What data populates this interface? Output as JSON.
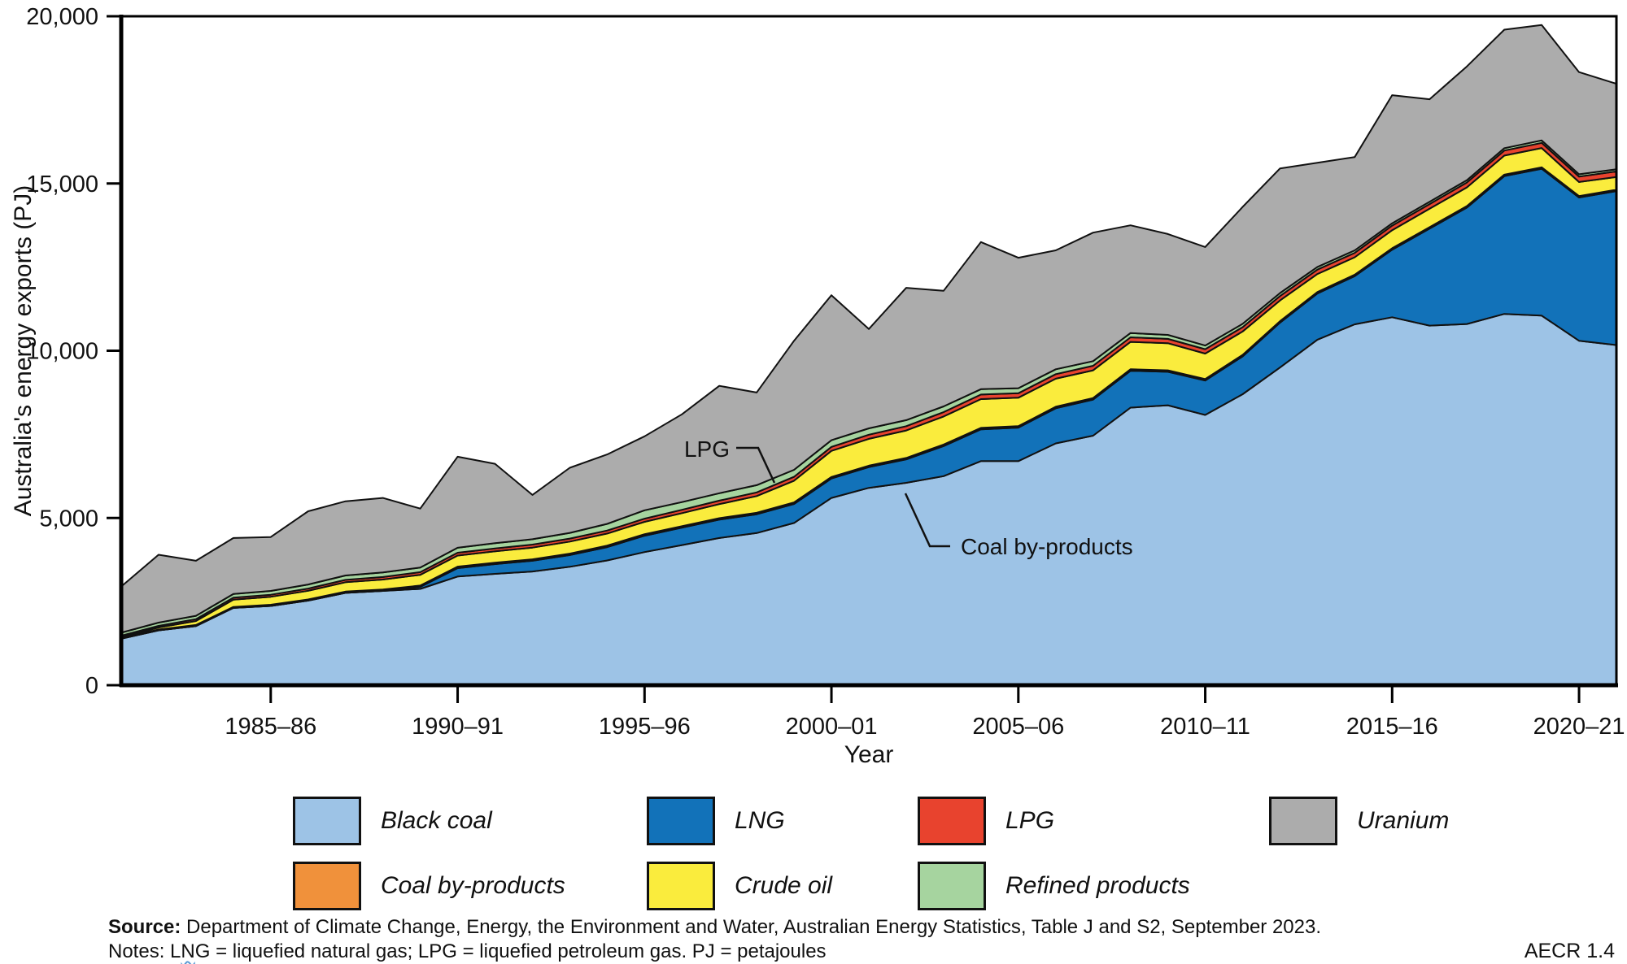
{
  "y_axis": {
    "label": "Australia's energy exports (PJ)",
    "ticks": [
      {
        "value": 0,
        "label": "0"
      },
      {
        "value": 5000,
        "label": "5,000"
      },
      {
        "value": 10000,
        "label": "10,000"
      },
      {
        "value": 15000,
        "label": "15,000"
      },
      {
        "value": 20000,
        "label": "20,000"
      }
    ]
  },
  "x_axis": {
    "label": "Year",
    "ticks": [
      {
        "index": 4,
        "label": "1985–86"
      },
      {
        "index": 9,
        "label": "1990–91"
      },
      {
        "index": 14,
        "label": "1995–96"
      },
      {
        "index": 19,
        "label": "2000–01"
      },
      {
        "index": 24,
        "label": "2005–06"
      },
      {
        "index": 29,
        "label": "2010–11"
      },
      {
        "index": 34,
        "label": "2015–16"
      },
      {
        "index": 39,
        "label": "2020–21"
      }
    ]
  },
  "annotations": {
    "lpg": "LPG",
    "coal_by_products": "Coal by-products"
  },
  "legend": {
    "items": [
      {
        "label": "Black coal",
        "color": "#9DC3E6"
      },
      {
        "label": "LNG",
        "color": "#1272B9"
      },
      {
        "label": "LPG",
        "color": "#E8432E"
      },
      {
        "label": "Uranium",
        "color": "#ACACAC"
      },
      {
        "label": "Coal by-products",
        "color": "#F0913B"
      },
      {
        "label": "Crude oil",
        "color": "#FAEC3D"
      },
      {
        "label": "Refined products",
        "color": "#A6D49F"
      }
    ]
  },
  "footer": {
    "source_label": "Source:",
    "source_text": " Department of Climate Change, Energy, the Environment and Water, Australian Energy Statistics, Table J and S2, September 2023.",
    "notes_prefix": "Notes: L",
    "notes_squiggle": "N",
    "notes_suffix": "G = liquefied natural gas; LPG = liquefied petroleum gas. PJ = petajoules",
    "figure_ref": "AECR 1.4"
  },
  "chart_data": {
    "type": "area",
    "stacked": true,
    "title": "",
    "xlabel": "Year",
    "ylabel": "Australia's energy exports (PJ)",
    "ylim": [
      0,
      20000
    ],
    "grid": false,
    "legend_position": "bottom",
    "x_categories": [
      "1981–82",
      "1982–83",
      "1983–84",
      "1984–85",
      "1985–86",
      "1986–87",
      "1987–88",
      "1988–89",
      "1989–90",
      "1990–91",
      "1991–92",
      "1992–93",
      "1993–94",
      "1994–95",
      "1995–96",
      "1996–97",
      "1997–98",
      "1998–99",
      "1999–00",
      "2000–01",
      "2001–02",
      "2002–03",
      "2003–04",
      "2004–05",
      "2005–06",
      "2006–07",
      "2007–08",
      "2008–09",
      "2009–10",
      "2010–11",
      "2011–12",
      "2012–13",
      "2013–14",
      "2014–15",
      "2015–16",
      "2016–17",
      "2017–18",
      "2018–19",
      "2019–20",
      "2020–21",
      "2021–22"
    ],
    "series": [
      {
        "id": "black-coal",
        "name": "Black coal",
        "color": "#9DC3E6",
        "values": [
          1390,
          1640,
          1770,
          2310,
          2370,
          2530,
          2760,
          2820,
          2880,
          3250,
          3330,
          3400,
          3540,
          3730,
          3980,
          4190,
          4400,
          4550,
          4850,
          5600,
          5900,
          6050,
          6250,
          6700,
          6700,
          7230,
          7460,
          8300,
          8370,
          8080,
          8700,
          9500,
          10330,
          10790,
          11000,
          10750,
          10800,
          11100,
          11050,
          10300,
          10170
        ]
      },
      {
        "id": "lng",
        "name": "LNG",
        "color": "#1272B9",
        "values": [
          0,
          0,
          0,
          0,
          0,
          0,
          0,
          0,
          60,
          250,
          290,
          320,
          350,
          400,
          490,
          520,
          550,
          560,
          570,
          580,
          620,
          700,
          900,
          950,
          1000,
          1050,
          1080,
          1100,
          1000,
          1030,
          1130,
          1340,
          1380,
          1440,
          2020,
          2900,
          3480,
          4120,
          4390,
          4280,
          4600
        ]
      },
      {
        "id": "coal-by-products",
        "name": "Coal by-products",
        "color": "#F0913B",
        "values": [
          25,
          25,
          30,
          30,
          35,
          35,
          40,
          40,
          40,
          45,
          45,
          45,
          45,
          45,
          45,
          45,
          45,
          45,
          45,
          45,
          45,
          45,
          45,
          45,
          45,
          45,
          45,
          45,
          45,
          45,
          45,
          45,
          45,
          45,
          45,
          45,
          45,
          45,
          45,
          45,
          45
        ]
      },
      {
        "id": "crude-oil",
        "name": "Crude oil",
        "color": "#FAEC3D",
        "values": [
          20,
          60,
          120,
          220,
          240,
          260,
          280,
          300,
          320,
          330,
          340,
          350,
          360,
          360,
          370,
          390,
          420,
          500,
          650,
          780,
          800,
          820,
          840,
          860,
          850,
          840,
          830,
          820,
          810,
          760,
          700,
          620,
          540,
          520,
          540,
          550,
          560,
          570,
          575,
          420,
          380
        ]
      },
      {
        "id": "lpg",
        "name": "LPG",
        "color": "#E8432E",
        "values": [
          45,
          50,
          55,
          60,
          60,
          65,
          70,
          75,
          80,
          85,
          85,
          90,
          90,
          90,
          95,
          100,
          105,
          110,
          115,
          120,
          125,
          130,
          130,
          135,
          135,
          135,
          135,
          135,
          130,
          130,
          130,
          130,
          130,
          130,
          135,
          140,
          145,
          150,
          155,
          160,
          165
        ]
      },
      {
        "id": "refined-products",
        "name": "Refined products",
        "color": "#A6D49F",
        "values": [
          90,
          95,
          100,
          110,
          115,
          120,
          130,
          135,
          140,
          150,
          155,
          160,
          170,
          200,
          250,
          230,
          220,
          215,
          210,
          200,
          190,
          180,
          170,
          160,
          150,
          145,
          140,
          130,
          120,
          110,
          100,
          90,
          80,
          75,
          70,
          70,
          70,
          70,
          75,
          70,
          65
        ]
      },
      {
        "id": "uranium",
        "name": "Uranium",
        "color": "#ACACAC",
        "values": [
          1380,
          2030,
          1645,
          1670,
          1610,
          2190,
          2220,
          2230,
          1760,
          2720,
          2375,
          1325,
          1945,
          2075,
          2210,
          2625,
          3210,
          2770,
          3860,
          4335,
          2970,
          3955,
          3455,
          4400,
          3900,
          3555,
          3840,
          3220,
          3015,
          2945,
          3495,
          3725,
          3115,
          2790,
          3830,
          3065,
          3400,
          3545,
          3450,
          3055,
          2555
        ]
      }
    ]
  }
}
